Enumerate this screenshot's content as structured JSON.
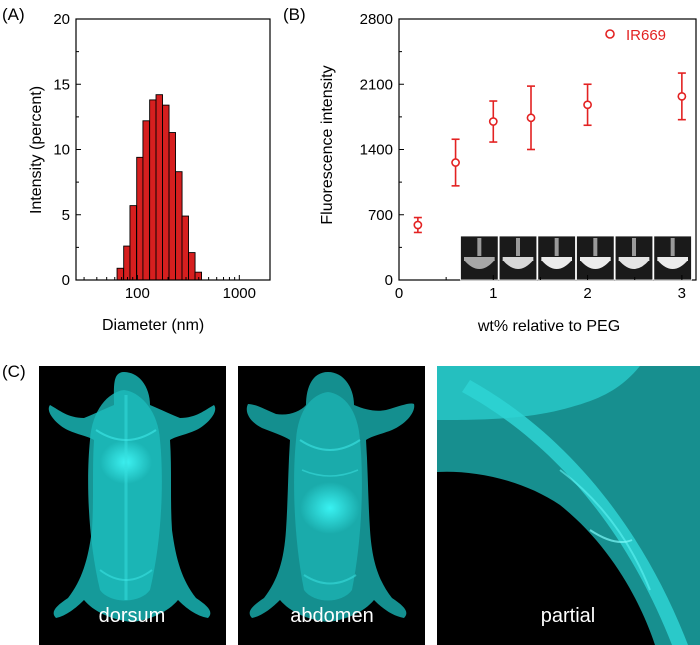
{
  "panel_labels": {
    "a": "(A)",
    "b": "(B)",
    "c": "(C)"
  },
  "colors": {
    "bar_fill": "#d61f1f",
    "marker": "#e32222",
    "fluor": "#22d4d4",
    "bg": "#000000"
  },
  "chart_data": [
    {
      "id": "A",
      "type": "bar",
      "xscale": "log",
      "xlabel": "Diameter (nm)",
      "ylabel": "Intensity (percent)",
      "xlim": [
        25,
        2000
      ],
      "ylim": [
        0,
        20
      ],
      "xticks": [
        100,
        1000
      ],
      "xtick_labels": [
        "100",
        "1000"
      ],
      "yticks": [
        0,
        5,
        10,
        15,
        20
      ],
      "ytick_labels": [
        "0",
        "5",
        "10",
        "15",
        "20"
      ],
      "categories": [
        68,
        79,
        91,
        106,
        122,
        142,
        164,
        190,
        220,
        255,
        295,
        342,
        396
      ],
      "values": [
        0.9,
        2.6,
        5.7,
        9.4,
        12.2,
        13.8,
        14.2,
        13.4,
        11.3,
        8.3,
        4.9,
        2.1,
        0.6
      ]
    },
    {
      "id": "B",
      "type": "scatter",
      "xlabel": "wt% relative to PEG",
      "ylabel": "Fluorescence intensity",
      "xlim": [
        0,
        3.15
      ],
      "ylim": [
        0,
        2800
      ],
      "xticks": [
        0,
        1,
        2,
        3
      ],
      "xtick_labels": [
        "0",
        "1",
        "2",
        "3"
      ],
      "yticks": [
        0,
        700,
        1400,
        2100,
        2800
      ],
      "ytick_labels": [
        "0",
        "700",
        "1400",
        "2100",
        "2800"
      ],
      "legend": "top-right",
      "series": [
        {
          "name": "IR669",
          "x": [
            0.2,
            0.6,
            1.0,
            1.4,
            2.0,
            3.0
          ],
          "y": [
            590,
            1260,
            1700,
            1740,
            1880,
            1970
          ],
          "yerr": [
            80,
            250,
            220,
            340,
            220,
            250
          ]
        }
      ],
      "inset_brightness": [
        0.35,
        0.7,
        0.85,
        0.85,
        0.8,
        0.85
      ]
    }
  ],
  "images": [
    {
      "label": "dorsum"
    },
    {
      "label": "abdomen"
    },
    {
      "label": "partial"
    }
  ]
}
